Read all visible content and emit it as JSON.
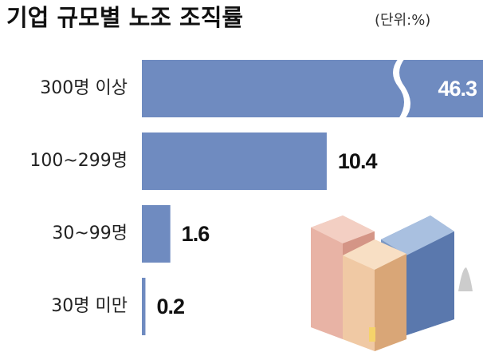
{
  "chart_data": {
    "type": "bar",
    "orientation": "horizontal",
    "title": "기업 규모별 노조 조직률",
    "subtitle": "(단위:%)",
    "categories": [
      "300명 이상",
      "100~299명",
      "30~99명",
      "30명 미만"
    ],
    "values": [
      46.3,
      10.4,
      1.6,
      0.2
    ],
    "color": "#6f8bc0"
  }
}
